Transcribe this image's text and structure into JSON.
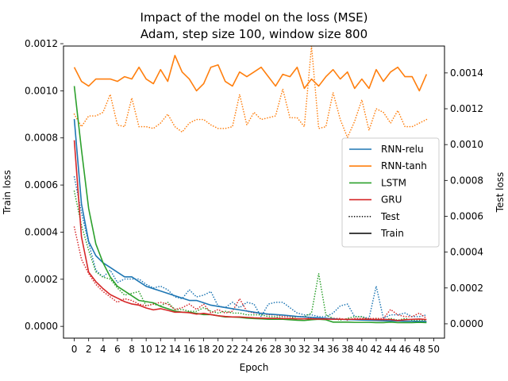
{
  "chart_data": {
    "type": "line",
    "title": "Impact of the model on the loss (MSE)",
    "subtitle": "Adam, step size 100, window size 800",
    "xlabel": "Epoch",
    "ylabel_left": "Train loss",
    "ylabel_right": "Test loss",
    "xlim": [
      -1.5,
      51.5
    ],
    "ylim_left": [
      -5e-05,
      0.00119
    ],
    "ylim_right": [
      -8e-05,
      0.00155
    ],
    "x_ticks": [
      0,
      2,
      4,
      6,
      8,
      10,
      12,
      14,
      16,
      18,
      20,
      22,
      24,
      26,
      28,
      30,
      32,
      34,
      36,
      38,
      40,
      42,
      44,
      46,
      48,
      50
    ],
    "y_ticks_left": [
      "0.0000",
      "0.0002",
      "0.0004",
      "0.0006",
      "0.0008",
      "0.0010",
      "0.0012"
    ],
    "y_tick_values_left": [
      0,
      0.0002,
      0.0004,
      0.0006,
      0.0008,
      0.001,
      0.0012
    ],
    "y_ticks_right": [
      "0.0000",
      "0.0002",
      "0.0004",
      "0.0006",
      "0.0008",
      "0.0010",
      "0.0012",
      "0.0014"
    ],
    "y_tick_values_right": [
      0,
      0.0002,
      0.0004,
      0.0006,
      0.0008,
      0.001,
      0.0012,
      0.0014
    ],
    "grid": false,
    "legend_position": "center-right",
    "legend": [
      {
        "label": "RNN-relu",
        "color": "#1f77b4",
        "style": "solid"
      },
      {
        "label": "RNN-tanh",
        "color": "#ff7f0e",
        "style": "solid"
      },
      {
        "label": "LSTM",
        "color": "#2ca02c",
        "style": "solid"
      },
      {
        "label": "GRU",
        "color": "#d62728",
        "style": "solid"
      },
      {
        "label": "Test",
        "color": "#000000",
        "style": "dotted"
      },
      {
        "label": "Train",
        "color": "#000000",
        "style": "solid"
      }
    ],
    "x": [
      0,
      1,
      2,
      3,
      4,
      5,
      6,
      7,
      8,
      9,
      10,
      11,
      12,
      13,
      14,
      15,
      16,
      17,
      18,
      19,
      20,
      21,
      22,
      23,
      24,
      25,
      26,
      27,
      28,
      29,
      30,
      31,
      32,
      33,
      34,
      35,
      36,
      37,
      38,
      39,
      40,
      41,
      42,
      43,
      44,
      45,
      46,
      47,
      48,
      49
    ],
    "series": [
      {
        "model": "RNN-relu",
        "kind": "train",
        "axis": "left",
        "color": "#1f77b4",
        "values": [
          0.00088,
          0.00052,
          0.00036,
          0.0003,
          0.00027,
          0.00025,
          0.00023,
          0.00021,
          0.00021,
          0.00019,
          0.00017,
          0.00016,
          0.00015,
          0.00014,
          0.00013,
          0.00012,
          0.00011,
          0.00011,
          0.0001,
          9e-05,
          8.5e-05,
          8e-05,
          7.5e-05,
          7e-05,
          6.5e-05,
          6e-05,
          5.5e-05,
          5.2e-05,
          5e-05,
          4.8e-05,
          4.5e-05,
          4.2e-05,
          4e-05,
          3.8e-05,
          3.6e-05,
          3.4e-05,
          3.2e-05,
          3e-05,
          2.9e-05,
          2.8e-05,
          2.7e-05,
          2.6e-05,
          2.5e-05,
          2.4e-05,
          2.3e-05,
          2.3e-05,
          2.2e-05,
          2.2e-05,
          2.1e-05,
          2.1e-05
        ]
      },
      {
        "model": "RNN-tanh",
        "kind": "train",
        "axis": "left",
        "color": "#ff7f0e",
        "values": [
          0.0011,
          0.00104,
          0.00102,
          0.00105,
          0.00105,
          0.00105,
          0.00104,
          0.00106,
          0.00105,
          0.0011,
          0.00105,
          0.00103,
          0.00109,
          0.00104,
          0.00115,
          0.00108,
          0.00105,
          0.001,
          0.00103,
          0.0011,
          0.00111,
          0.00104,
          0.00102,
          0.00108,
          0.00106,
          0.00108,
          0.0011,
          0.00106,
          0.00102,
          0.00107,
          0.00106,
          0.0011,
          0.00101,
          0.00105,
          0.00102,
          0.00106,
          0.00109,
          0.00105,
          0.00108,
          0.00101,
          0.00105,
          0.00101,
          0.00109,
          0.00104,
          0.00108,
          0.0011,
          0.00106,
          0.00106,
          0.001,
          0.00107
        ]
      },
      {
        "model": "LSTM",
        "kind": "train",
        "axis": "left",
        "color": "#2ca02c",
        "values": [
          0.00102,
          0.00075,
          0.0005,
          0.00035,
          0.00027,
          0.00021,
          0.00017,
          0.00015,
          0.00013,
          0.00011,
          0.000105,
          0.0001,
          8.5e-05,
          7.5e-05,
          6.5e-05,
          6e-05,
          6e-05,
          5.5e-05,
          5e-05,
          5e-05,
          4.5e-05,
          4e-05,
          4e-05,
          3.8e-05,
          3.5e-05,
          3.3e-05,
          3.2e-05,
          3e-05,
          3e-05,
          3e-05,
          2.8e-05,
          2.6e-05,
          2.5e-05,
          2.8e-05,
          3e-05,
          2.8e-05,
          1.8e-05,
          1.8e-05,
          1.8e-05,
          1.7e-05,
          1.7e-05,
          1.7e-05,
          1.6e-05,
          1.6e-05,
          1.8e-05,
          1.6e-05,
          1.6e-05,
          1.6e-05,
          1.7e-05,
          1.6e-05
        ]
      },
      {
        "model": "GRU",
        "kind": "train",
        "axis": "left",
        "color": "#d62728",
        "values": [
          0.00079,
          0.00038,
          0.00023,
          0.00019,
          0.00016,
          0.000135,
          0.00012,
          0.000105,
          9.5e-05,
          9e-05,
          7.8e-05,
          7e-05,
          7.5e-05,
          6.8e-05,
          6e-05,
          6e-05,
          5.8e-05,
          5.2e-05,
          5.5e-05,
          5e-05,
          4.5e-05,
          4.2e-05,
          4e-05,
          4e-05,
          3.8e-05,
          3.6e-05,
          3.5e-05,
          3.4e-05,
          3.4e-05,
          3.3e-05,
          3.3e-05,
          3.2e-05,
          3.2e-05,
          3.2e-05,
          3.1e-05,
          3.1e-05,
          3e-05,
          3e-05,
          3e-05,
          3e-05,
          3e-05,
          3e-05,
          2.9e-05,
          2.9e-05,
          2.9e-05,
          2.5e-05,
          2.8e-05,
          3e-05,
          3.1e-05,
          2.9e-05
        ]
      },
      {
        "model": "RNN-relu",
        "kind": "test",
        "axis": "right",
        "color": "#1f77b4",
        "values": [
          0.00082,
          0.00062,
          0.00045,
          0.0003,
          0.00026,
          0.0003,
          0.00023,
          0.00025,
          0.00025,
          0.00025,
          0.00022,
          0.0002,
          0.00021,
          0.00019,
          0.00015,
          0.00014,
          0.00019,
          0.00015,
          0.00016,
          0.00018,
          0.0001,
          9e-05,
          0.00012,
          9e-05,
          0.00012,
          0.00011,
          4e-05,
          0.00011,
          0.00012,
          0.00012,
          9e-05,
          6e-05,
          5e-05,
          5e-05,
          4e-05,
          4e-05,
          6e-05,
          0.0001,
          0.00011,
          4e-05,
          4e-05,
          3e-05,
          0.00021,
          3e-05,
          5e-05,
          5e-05,
          6e-05,
          4e-05,
          4e-05,
          5e-05
        ]
      },
      {
        "model": "RNN-tanh",
        "kind": "test",
        "axis": "right",
        "color": "#ff7f0e",
        "values": [
          0.00117,
          0.0011,
          0.00116,
          0.00116,
          0.00118,
          0.00128,
          0.00111,
          0.0011,
          0.00126,
          0.0011,
          0.0011,
          0.00109,
          0.00112,
          0.00117,
          0.0011,
          0.00107,
          0.00112,
          0.00114,
          0.00114,
          0.00111,
          0.00109,
          0.00109,
          0.0011,
          0.00128,
          0.00111,
          0.00118,
          0.00114,
          0.00115,
          0.00116,
          0.00131,
          0.00115,
          0.00115,
          0.0011,
          0.00155,
          0.00109,
          0.0011,
          0.00129,
          0.00114,
          0.00104,
          0.00113,
          0.00125,
          0.00108,
          0.0012,
          0.00118,
          0.00112,
          0.00119,
          0.0011,
          0.0011,
          0.00112,
          0.00114
        ]
      },
      {
        "model": "LSTM",
        "kind": "test",
        "axis": "right",
        "color": "#2ca02c",
        "values": [
          0.00074,
          0.00055,
          0.00041,
          0.00029,
          0.00026,
          0.00025,
          0.0002,
          0.00016,
          0.00017,
          0.00018,
          0.0001,
          0.00011,
          0.0001,
          0.00012,
          8e-05,
          8e-05,
          7e-05,
          7e-05,
          9e-05,
          7e-05,
          6e-05,
          7e-05,
          6e-05,
          6e-05,
          5e-05,
          5e-05,
          5e-05,
          4e-05,
          4e-05,
          3e-05,
          3e-05,
          4e-05,
          4e-05,
          6e-05,
          0.00028,
          5e-05,
          3e-05,
          2e-05,
          3e-05,
          4e-05,
          4e-05,
          2e-05,
          3e-05,
          2e-05,
          3e-05,
          2e-05,
          3e-05,
          2e-05,
          2e-05,
          2e-05
        ]
      },
      {
        "model": "GRU",
        "kind": "test",
        "axis": "right",
        "color": "#d62728",
        "values": [
          0.00054,
          0.00036,
          0.00028,
          0.00022,
          0.00018,
          0.00015,
          0.00012,
          0.00014,
          0.00013,
          0.00011,
          0.0001,
          0.00011,
          0.00012,
          0.00011,
          8e-05,
          9e-05,
          0.00011,
          8e-05,
          0.00011,
          6e-05,
          8e-05,
          6e-05,
          7e-05,
          0.00014,
          7e-05,
          6e-05,
          6e-05,
          5e-05,
          5e-05,
          4e-05,
          4e-05,
          4e-05,
          4e-05,
          3e-05,
          3e-05,
          3e-05,
          3e-05,
          3e-05,
          2e-05,
          3e-05,
          3e-05,
          3e-05,
          3e-05,
          3e-05,
          8e-05,
          5e-05,
          4e-05,
          4e-05,
          6e-05,
          3e-05
        ]
      }
    ]
  }
}
